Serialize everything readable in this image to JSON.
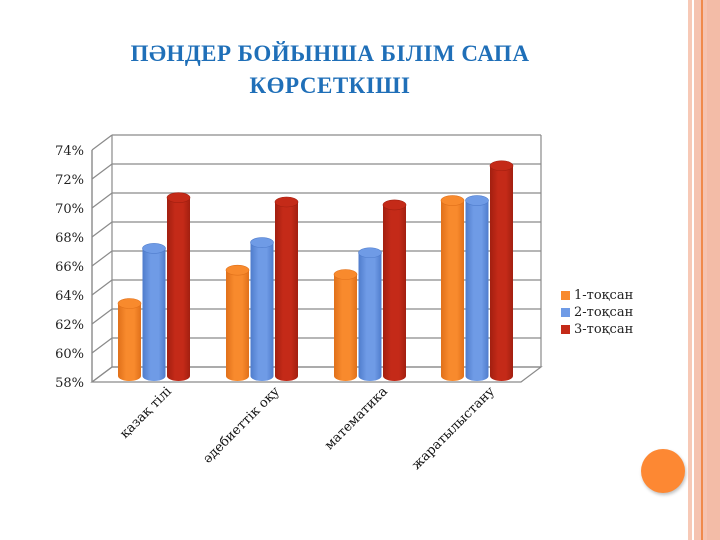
{
  "slide": {
    "title_line1": "ПӘНДЕР БОЙЫНША БІЛІМ САПА",
    "title_line2": "КӨРСЕТКІШІ"
  },
  "colors": {
    "title": "#1f6fb8",
    "series": [
      "#f88a2d",
      "#6f9be6",
      "#c42a18"
    ],
    "series_dark": [
      "#e0701a",
      "#4f7ccc",
      "#a21f10"
    ],
    "accent_circle": "#fd8833",
    "border_peach": "#f5c3b0",
    "border_line": "#f08a4b"
  },
  "legend": {
    "items": [
      {
        "label": "1-тоқсан"
      },
      {
        "label": "2-тоқсан"
      },
      {
        "label": "3-тоқсан"
      }
    ]
  },
  "chart_data": {
    "type": "bar",
    "subtype": "3d-cylinder-clustered",
    "title": "ПӘНДЕР БОЙЫНША БІЛІМ САПА КӨРСЕТКІШІ",
    "xlabel": "",
    "ylabel": "",
    "categories": [
      "қазақ тілі",
      "әдебиеттік оқу",
      "математика",
      "жаратылыстану"
    ],
    "series": [
      {
        "name": "1-тоқсан",
        "values": [
          63.0,
          65.3,
          65.0,
          70.1
        ]
      },
      {
        "name": "2-тоқсан",
        "values": [
          66.8,
          67.2,
          66.5,
          70.1
        ]
      },
      {
        "name": "3-тоқсан",
        "values": [
          70.3,
          70.0,
          69.8,
          72.5
        ]
      }
    ],
    "ylim": [
      58,
      74
    ],
    "yticks": [
      "58%",
      "60%",
      "62%",
      "64%",
      "66%",
      "68%",
      "70%",
      "72%",
      "74%"
    ],
    "grid": true,
    "legend_position": "right"
  }
}
